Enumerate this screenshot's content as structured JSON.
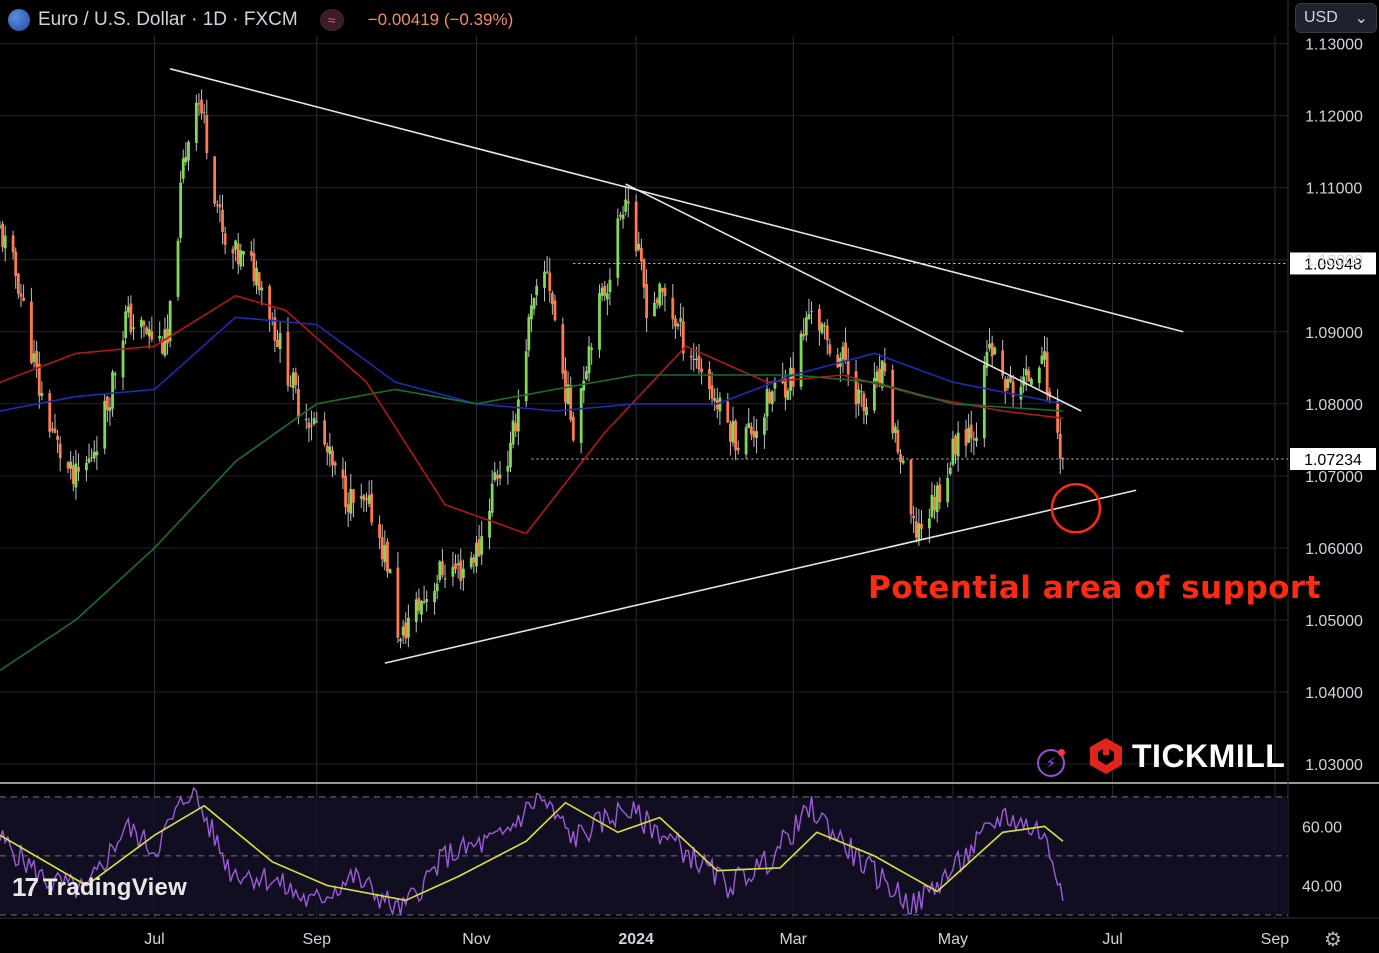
{
  "header": {
    "symbol_title": "Euro / U.S. Dollar · 1D · FXCM",
    "change_text": "−0.00419 (−0.39%)",
    "indicator_icon": "wave-icon",
    "currency_select": "USD"
  },
  "watermark": {
    "logo_mark": "17",
    "logo_text": "TradingView"
  },
  "brand": {
    "name": "TICKMILL"
  },
  "annotation": {
    "text": "Potential area of support"
  },
  "colors": {
    "background": "#000000",
    "up_candle": "#7ed957",
    "down_candle": "#ff7a4d",
    "ma_fast": "#b3161b",
    "ma_mid": "#1d2bb8",
    "ma_slow": "#1b6e2a",
    "rsi": "#9b5cd6",
    "rsi_ma": "#d7e33a",
    "annotation": "#ff2a12"
  },
  "chart_data": {
    "type": "candlestick",
    "instrument": "Euro / U.S. Dollar",
    "timeframe": "1D",
    "price_axis": {
      "ticks": [
        "1.13000",
        "1.12000",
        "1.11000",
        "1.10000",
        "1.09000",
        "1.08000",
        "1.07000",
        "1.06000",
        "1.05000",
        "1.04000",
        "1.03000"
      ],
      "ylim": [
        1.0275,
        1.1305
      ]
    },
    "price_labels": [
      {
        "text": "1.09948",
        "value": 1.09948
      },
      {
        "text": "1.07234",
        "value": 1.07234
      }
    ],
    "x_axis": {
      "ticks": [
        {
          "label": "Jul",
          "date": "2023-07-01"
        },
        {
          "label": "Sep",
          "date": "2023-09-01"
        },
        {
          "label": "Nov",
          "date": "2023-11-01"
        },
        {
          "label": "2024",
          "date": "2024-01-01"
        },
        {
          "label": "Mar",
          "date": "2024-03-01"
        },
        {
          "label": "May",
          "date": "2024-05-01"
        },
        {
          "label": "Jul",
          "date": "2024-07-01"
        },
        {
          "label": "Sep",
          "date": "2024-09-01"
        }
      ],
      "xlim": [
        "2023-05-03",
        "2024-09-06"
      ]
    },
    "close_path": [
      [
        "2023-05-03",
        1.104
      ],
      [
        "2023-05-10",
        1.097
      ],
      [
        "2023-05-18",
        1.082
      ],
      [
        "2023-05-25",
        1.074
      ],
      [
        "2023-05-31",
        1.069
      ],
      [
        "2023-06-06",
        1.072
      ],
      [
        "2023-06-13",
        1.08
      ],
      [
        "2023-06-20",
        1.092
      ],
      [
        "2023-06-27",
        1.09
      ],
      [
        "2023-07-06",
        1.088
      ],
      [
        "2023-07-12",
        1.113
      ],
      [
        "2023-07-17",
        1.1235
      ],
      [
        "2023-07-20",
        1.119
      ],
      [
        "2023-07-28",
        1.101
      ],
      [
        "2023-08-04",
        1.1
      ],
      [
        "2023-08-10",
        1.098
      ],
      [
        "2023-08-18",
        1.088
      ],
      [
        "2023-08-25",
        1.08
      ],
      [
        "2023-09-01",
        1.077
      ],
      [
        "2023-09-08",
        1.07
      ],
      [
        "2023-09-15",
        1.066
      ],
      [
        "2023-09-22",
        1.065
      ],
      [
        "2023-09-28",
        1.058
      ],
      [
        "2023-10-03",
        1.0465
      ],
      [
        "2023-10-06",
        1.05
      ],
      [
        "2023-10-12",
        1.053
      ],
      [
        "2023-10-19",
        1.057
      ],
      [
        "2023-10-26",
        1.057
      ],
      [
        "2023-11-02",
        1.06
      ],
      [
        "2023-11-08",
        1.07
      ],
      [
        "2023-11-14",
        1.073
      ],
      [
        "2023-11-21",
        1.091
      ],
      [
        "2023-11-28",
        1.099
      ],
      [
        "2023-12-04",
        1.084
      ],
      [
        "2023-12-08",
        1.077
      ],
      [
        "2023-12-15",
        1.09
      ],
      [
        "2023-12-21",
        1.097
      ],
      [
        "2023-12-28",
        1.11
      ],
      [
        "2024-01-05",
        1.094
      ],
      [
        "2024-01-12",
        1.095
      ],
      [
        "2024-01-19",
        1.089
      ],
      [
        "2024-01-26",
        1.085
      ],
      [
        "2024-02-02",
        1.079
      ],
      [
        "2024-02-09",
        1.075
      ],
      [
        "2024-02-16",
        1.077
      ],
      [
        "2024-02-23",
        1.082
      ],
      [
        "2024-03-01",
        1.084
      ],
      [
        "2024-03-08",
        1.094
      ],
      [
        "2024-03-14",
        1.088
      ],
      [
        "2024-03-21",
        1.086
      ],
      [
        "2024-03-28",
        1.079
      ],
      [
        "2024-04-04",
        1.084
      ],
      [
        "2024-04-10",
        1.074
      ],
      [
        "2024-04-16",
        1.062
      ],
      [
        "2024-04-22",
        1.065
      ],
      [
        "2024-04-29",
        1.071
      ],
      [
        "2024-05-03",
        1.076
      ],
      [
        "2024-05-10",
        1.077
      ],
      [
        "2024-05-15",
        1.088
      ],
      [
        "2024-05-22",
        1.082
      ],
      [
        "2024-05-29",
        1.083
      ],
      [
        "2024-06-04",
        1.088
      ],
      [
        "2024-06-07",
        1.08
      ],
      [
        "2024-06-10",
        1.076
      ],
      [
        "2024-06-12",
        1.0723
      ]
    ],
    "moving_averages": [
      {
        "key": "fast",
        "color": "#b3161b",
        "points": [
          [
            "2023-05-03",
            1.083
          ],
          [
            "2023-06-01",
            1.087
          ],
          [
            "2023-07-01",
            1.088
          ],
          [
            "2023-08-01",
            1.095
          ],
          [
            "2023-08-20",
            1.093
          ],
          [
            "2023-09-20",
            1.083
          ],
          [
            "2023-10-20",
            1.066
          ],
          [
            "2023-11-20",
            1.062
          ],
          [
            "2023-12-20",
            1.076
          ],
          [
            "2024-01-20",
            1.088
          ],
          [
            "2024-02-20",
            1.083
          ],
          [
            "2024-03-20",
            1.084
          ],
          [
            "2024-04-20",
            1.081
          ],
          [
            "2024-05-20",
            1.079
          ],
          [
            "2024-06-12",
            1.078
          ]
        ]
      },
      {
        "key": "mid",
        "color": "#1d2bb8",
        "points": [
          [
            "2023-05-03",
            1.079
          ],
          [
            "2023-06-01",
            1.081
          ],
          [
            "2023-07-01",
            1.082
          ],
          [
            "2023-08-01",
            1.092
          ],
          [
            "2023-09-01",
            1.091
          ],
          [
            "2023-10-01",
            1.083
          ],
          [
            "2023-11-01",
            1.08
          ],
          [
            "2023-12-01",
            1.079
          ],
          [
            "2024-01-01",
            1.08
          ],
          [
            "2024-02-01",
            1.08
          ],
          [
            "2024-03-01",
            1.084
          ],
          [
            "2024-04-01",
            1.087
          ],
          [
            "2024-05-01",
            1.083
          ],
          [
            "2024-06-12",
            1.08
          ]
        ]
      },
      {
        "key": "slow",
        "color": "#1b6e2a",
        "points": [
          [
            "2023-05-03",
            1.043
          ],
          [
            "2023-06-01",
            1.05
          ],
          [
            "2023-07-01",
            1.06
          ],
          [
            "2023-08-01",
            1.072
          ],
          [
            "2023-09-01",
            1.08
          ],
          [
            "2023-10-01",
            1.082
          ],
          [
            "2023-11-01",
            1.08
          ],
          [
            "2023-12-01",
            1.082
          ],
          [
            "2024-01-01",
            1.084
          ],
          [
            "2024-02-01",
            1.084
          ],
          [
            "2024-03-01",
            1.084
          ],
          [
            "2024-04-01",
            1.083
          ],
          [
            "2024-05-01",
            1.08
          ],
          [
            "2024-06-12",
            1.079
          ]
        ]
      }
    ],
    "trendlines": [
      {
        "from": [
          "2023-07-07",
          1.1265
        ],
        "to": [
          "2024-07-28",
          1.09
        ]
      },
      {
        "from": [
          "2023-12-28",
          1.1105
        ],
        "to": [
          "2024-06-19",
          1.079
        ]
      },
      {
        "from": [
          "2023-09-27",
          1.044
        ],
        "to": [
          "2024-07-10",
          1.068
        ]
      }
    ],
    "highlight_circle": {
      "center": [
        "2024-06-17",
        1.0655
      ]
    },
    "rsi_panel": {
      "ticks": [
        "60.00",
        "40.00"
      ],
      "ylim": [
        29,
        74
      ],
      "dashed_levels": [
        70,
        50,
        30
      ],
      "rsi_path": [
        [
          "2023-05-03",
          56
        ],
        [
          "2023-05-20",
          42
        ],
        [
          "2023-06-05",
          38
        ],
        [
          "2023-06-20",
          60
        ],
        [
          "2023-07-01",
          52
        ],
        [
          "2023-07-15",
          73
        ],
        [
          "2023-07-30",
          45
        ],
        [
          "2023-08-15",
          42
        ],
        [
          "2023-08-30",
          34
        ],
        [
          "2023-09-15",
          43
        ],
        [
          "2023-10-03",
          31
        ],
        [
          "2023-10-20",
          50
        ],
        [
          "2023-11-10",
          56
        ],
        [
          "2023-11-25",
          70
        ],
        [
          "2023-12-08",
          56
        ],
        [
          "2023-12-28",
          66
        ],
        [
          "2024-01-15",
          55
        ],
        [
          "2024-02-05",
          40
        ],
        [
          "2024-02-20",
          48
        ],
        [
          "2024-03-08",
          66
        ],
        [
          "2024-03-28",
          47
        ],
        [
          "2024-04-16",
          33
        ],
        [
          "2024-05-03",
          47
        ],
        [
          "2024-05-20",
          64
        ],
        [
          "2024-06-04",
          58
        ],
        [
          "2024-06-12",
          39
        ]
      ],
      "rsi_ma_path": [
        [
          "2023-05-03",
          57
        ],
        [
          "2023-06-05",
          40
        ],
        [
          "2023-07-01",
          57
        ],
        [
          "2023-07-20",
          67
        ],
        [
          "2023-08-15",
          48
        ],
        [
          "2023-09-05",
          40
        ],
        [
          "2023-10-05",
          35
        ],
        [
          "2023-10-25",
          43
        ],
        [
          "2023-11-20",
          55
        ],
        [
          "2023-12-05",
          68
        ],
        [
          "2023-12-25",
          58
        ],
        [
          "2024-01-10",
          63
        ],
        [
          "2024-02-01",
          45
        ],
        [
          "2024-02-25",
          46
        ],
        [
          "2024-03-10",
          58
        ],
        [
          "2024-04-01",
          50
        ],
        [
          "2024-04-25",
          38
        ],
        [
          "2024-05-20",
          58
        ],
        [
          "2024-06-05",
          60
        ],
        [
          "2024-06-12",
          55
        ]
      ]
    }
  }
}
